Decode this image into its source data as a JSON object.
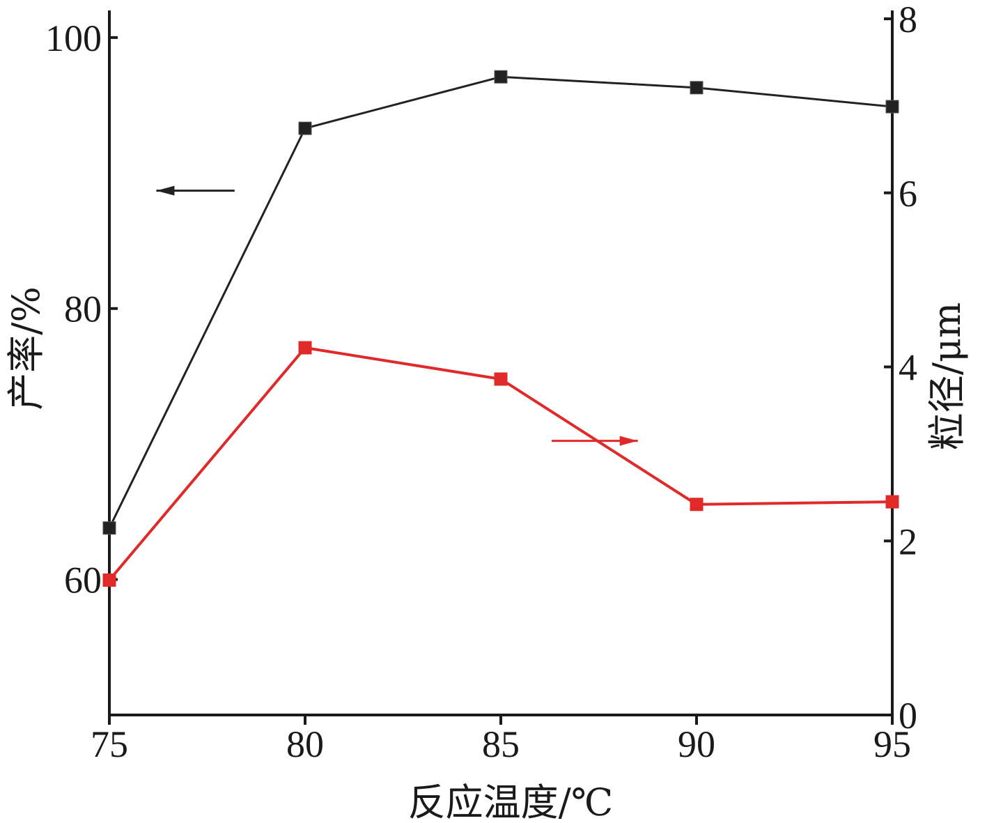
{
  "chart_data": {
    "type": "line",
    "xlabel": "反应温度/℃",
    "ylabel_left": "产率/%",
    "ylabel_right": "粒径/μm",
    "x": [
      75,
      80,
      85,
      90,
      95
    ],
    "x_ticks": [
      75,
      80,
      85,
      90,
      95
    ],
    "xlim": [
      75,
      95
    ],
    "ylim_left": [
      50,
      102
    ],
    "ylim_right": [
      0,
      8
    ],
    "y_ticks_left": [
      60,
      80,
      100
    ],
    "y_ticks_right": [
      0,
      2,
      4,
      6,
      8
    ],
    "grid": false,
    "series": [
      {
        "axis": "left",
        "color": "#222222",
        "marker": "square",
        "values": [
          63.8,
          93.3,
          97.1,
          96.3,
          94.9
        ]
      },
      {
        "axis": "right",
        "color": "#e02a2a",
        "marker": "square",
        "values": [
          1.55,
          4.22,
          3.86,
          2.42,
          2.45
        ]
      }
    ],
    "annotations": [
      {
        "type": "arrow",
        "direction": "left",
        "series": 0
      },
      {
        "type": "arrow",
        "direction": "right",
        "series": 1
      }
    ]
  }
}
